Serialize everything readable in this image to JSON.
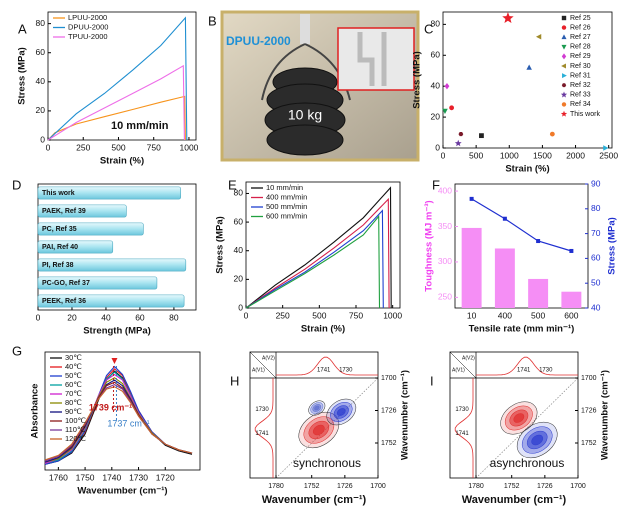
{
  "photo": {
    "panel": "B",
    "label": "DPUU-2000",
    "weight": "10 kg"
  },
  "chart_data": [
    {
      "panel": "A",
      "type": "line",
      "xlabel": "Strain (%)",
      "ylabel": "Stress (MPa)",
      "annotation": "10 mm/min",
      "xlim": [
        0,
        1050
      ],
      "xticks": [
        0,
        250,
        500,
        750,
        1000
      ],
      "ylim": [
        0,
        88
      ],
      "yticks": [
        0,
        20,
        40,
        60,
        80
      ],
      "legend": "upper left",
      "series": [
        {
          "name": "LPUU-2000",
          "color": "#f7941d",
          "x": [
            0,
            50,
            200,
            400,
            600,
            800,
            970,
            975
          ],
          "values": [
            0,
            5,
            11,
            16,
            21,
            26,
            30,
            0
          ]
        },
        {
          "name": "DPUU-2000",
          "color": "#1f8fd1",
          "x": [
            0,
            200,
            400,
            600,
            800,
            975,
            985
          ],
          "values": [
            0,
            18,
            32,
            48,
            65,
            84,
            0
          ]
        },
        {
          "name": "TPUU-2000",
          "color": "#ee6ee8",
          "x": [
            0,
            200,
            400,
            600,
            800,
            960,
            968
          ],
          "values": [
            0,
            12,
            22,
            32,
            42,
            51,
            0
          ]
        }
      ]
    },
    {
      "panel": "C",
      "type": "scatter",
      "xlabel": "Strain (%)",
      "ylabel": "Stress (MPa)",
      "xlim": [
        0,
        2550
      ],
      "xticks": [
        0,
        500,
        1000,
        1500,
        2000,
        2500
      ],
      "ylim": [
        0,
        88
      ],
      "yticks": [
        0,
        20,
        40,
        60,
        80
      ],
      "legend": "upper right",
      "series": [
        {
          "name": "Ref 25",
          "color": "#222222",
          "marker": "square",
          "x": [
            580
          ],
          "values": [
            8
          ]
        },
        {
          "name": "Ref 26",
          "color": "#e8202a",
          "marker": "circle",
          "x": [
            130
          ],
          "values": [
            26
          ]
        },
        {
          "name": "Ref 27",
          "color": "#2a5db0",
          "marker": "triangle-up",
          "x": [
            1300
          ],
          "values": [
            52
          ]
        },
        {
          "name": "Ref 28",
          "color": "#1a9a50",
          "marker": "triangle-down",
          "x": [
            30
          ],
          "values": [
            24
          ]
        },
        {
          "name": "Ref 29",
          "color": "#d23bd2",
          "marker": "diamond",
          "x": [
            60
          ],
          "values": [
            40
          ]
        },
        {
          "name": "Ref 30",
          "color": "#a08a2a",
          "marker": "triangle-left",
          "x": [
            1450
          ],
          "values": [
            72
          ]
        },
        {
          "name": "Ref 31",
          "color": "#2ab0d8",
          "marker": "triangle-right",
          "x": [
            2450
          ],
          "values": [
            0
          ]
        },
        {
          "name": "Ref 32",
          "color": "#7a1a2a",
          "marker": "hexagon",
          "x": [
            270
          ],
          "values": [
            9
          ]
        },
        {
          "name": "Ref 33",
          "color": "#6a3aa0",
          "marker": "star",
          "x": [
            230
          ],
          "values": [
            3
          ]
        },
        {
          "name": "Ref 34",
          "color": "#f07a2a",
          "marker": "circle",
          "x": [
            1650
          ],
          "values": [
            9
          ]
        },
        {
          "name": "This work",
          "color": "#e8202a",
          "marker": "star",
          "x": [
            980
          ],
          "values": [
            84
          ]
        }
      ]
    },
    {
      "panel": "D",
      "type": "barh",
      "xlabel": "Strength (MPa)",
      "color": "#a8e4f0",
      "categories": [
        "This work",
        "PAEK, Ref 39",
        "PC, Ref 35",
        "PAI, Ref 40",
        "PI, Ref 38",
        "PC-GO, Ref 37",
        "PEEK, Ref 36"
      ],
      "values": [
        84,
        52,
        62,
        44,
        87,
        70,
        86
      ],
      "xlim": [
        0,
        93
      ],
      "xticks": [
        0,
        20,
        40,
        60,
        80
      ]
    },
    {
      "panel": "E",
      "type": "line",
      "xlabel": "Strain (%)",
      "ylabel": "Stress (MPa)",
      "xlim": [
        0,
        1050
      ],
      "xticks": [
        0,
        250,
        500,
        750,
        1000
      ],
      "ylim": [
        0,
        88
      ],
      "yticks": [
        0,
        20,
        40,
        60,
        80
      ],
      "legend": "upper left",
      "series": [
        {
          "name": "10 mm/min",
          "color": "#111111",
          "x": [
            0,
            200,
            400,
            600,
            800,
            985,
            990
          ],
          "values": [
            0,
            16,
            30,
            46,
            63,
            84,
            0
          ]
        },
        {
          "name": "400 mm/min",
          "color": "#d6204a",
          "x": [
            0,
            200,
            400,
            600,
            800,
            970,
            976
          ],
          "values": [
            0,
            14,
            27,
            42,
            58,
            76,
            0
          ]
        },
        {
          "name": "500 mm/min",
          "color": "#2040d0",
          "x": [
            0,
            200,
            400,
            600,
            800,
            930,
            936
          ],
          "values": [
            0,
            13,
            25,
            39,
            54,
            68,
            0
          ]
        },
        {
          "name": "600 mm/min",
          "color": "#20a040",
          "x": [
            0,
            200,
            400,
            600,
            800,
            905,
            910
          ],
          "values": [
            0,
            12,
            24,
            37,
            51,
            64,
            0
          ]
        }
      ]
    },
    {
      "panel": "F",
      "type": "bar_line",
      "xlabel": "Tensile rate (mm min⁻¹)",
      "ylabel": "Toughness (MJ m⁻³)",
      "y2label": "Stress (MPa)",
      "categories": [
        "10",
        "400",
        "500",
        "600"
      ],
      "ylim": [
        235,
        410
      ],
      "yticks": [
        250,
        300,
        350,
        400
      ],
      "y2lim": [
        40,
        90
      ],
      "y2ticks": [
        40,
        50,
        60,
        70,
        80,
        90
      ],
      "series": [
        {
          "color": "#f58ef5",
          "values": [
            348,
            319,
            276,
            258
          ]
        },
        {
          "color": "#1f2fd0",
          "axis": "y2",
          "values": [
            84,
            76,
            67,
            63
          ]
        }
      ]
    },
    {
      "panel": "G",
      "type": "line",
      "xlabel": "Wavenumber (cm⁻¹)",
      "ylabel": "Absorbance",
      "legend": "upper left",
      "annotations": [
        "1739 cm⁻¹",
        "1737 cm⁻¹"
      ],
      "xlim": [
        1765,
        1707
      ],
      "xticks": [
        1760,
        1750,
        1740,
        1730,
        1720
      ],
      "ylim": [
        0,
        1.05
      ],
      "x": [
        1765,
        1760,
        1755,
        1750,
        1745,
        1742,
        1739,
        1736,
        1733,
        1730,
        1725,
        1720,
        1715,
        1710
      ],
      "series": [
        {
          "name": "30℃",
          "color": "#111111",
          "values": [
            0.05,
            0.08,
            0.15,
            0.32,
            0.62,
            0.8,
            0.88,
            0.82,
            0.68,
            0.52,
            0.33,
            0.22,
            0.17,
            0.14
          ]
        },
        {
          "name": "40℃",
          "color": "#e41a1c",
          "values": [
            0.06,
            0.09,
            0.16,
            0.34,
            0.64,
            0.82,
            0.9,
            0.84,
            0.69,
            0.53,
            0.34,
            0.23,
            0.18,
            0.15
          ]
        },
        {
          "name": "50℃",
          "color": "#1f3fd0",
          "values": [
            0.05,
            0.08,
            0.16,
            0.35,
            0.66,
            0.84,
            0.92,
            0.85,
            0.7,
            0.53,
            0.34,
            0.23,
            0.18,
            0.15
          ]
        },
        {
          "name": "60℃",
          "color": "#00a0a0",
          "values": [
            0.06,
            0.09,
            0.17,
            0.36,
            0.65,
            0.81,
            0.87,
            0.81,
            0.67,
            0.51,
            0.33,
            0.23,
            0.18,
            0.15
          ]
        },
        {
          "name": "70℃",
          "color": "#d020d0",
          "values": [
            0.06,
            0.1,
            0.18,
            0.37,
            0.66,
            0.8,
            0.85,
            0.8,
            0.66,
            0.51,
            0.33,
            0.23,
            0.18,
            0.15
          ]
        },
        {
          "name": "80℃",
          "color": "#8a8a00",
          "values": [
            0.07,
            0.1,
            0.19,
            0.38,
            0.65,
            0.78,
            0.82,
            0.77,
            0.64,
            0.5,
            0.33,
            0.23,
            0.18,
            0.15
          ]
        },
        {
          "name": "90℃",
          "color": "#101080",
          "values": [
            0.07,
            0.11,
            0.2,
            0.39,
            0.64,
            0.76,
            0.8,
            0.75,
            0.63,
            0.49,
            0.32,
            0.23,
            0.18,
            0.15
          ]
        },
        {
          "name": "100℃",
          "color": "#8b1a1a",
          "values": [
            0.08,
            0.12,
            0.21,
            0.4,
            0.64,
            0.75,
            0.78,
            0.73,
            0.62,
            0.49,
            0.32,
            0.23,
            0.18,
            0.15
          ]
        },
        {
          "name": "110℃",
          "color": "#7a3a9a",
          "values": [
            0.08,
            0.12,
            0.22,
            0.41,
            0.63,
            0.73,
            0.76,
            0.72,
            0.61,
            0.48,
            0.32,
            0.23,
            0.18,
            0.15
          ]
        },
        {
          "name": "120℃",
          "color": "#c86428",
          "values": [
            0.09,
            0.13,
            0.23,
            0.42,
            0.63,
            0.72,
            0.74,
            0.7,
            0.6,
            0.48,
            0.32,
            0.23,
            0.18,
            0.15
          ]
        }
      ]
    },
    {
      "panel": "H",
      "type": "contour",
      "label": "synchronous",
      "xlabel": "Wavenumber (cm⁻¹)",
      "ylabel": "Wavenumber (cm⁻¹)",
      "trace_labels": [
        "A(V1)",
        "A(V2)"
      ],
      "peaks": [
        1741,
        1730
      ],
      "xlim": [
        1780,
        1700
      ],
      "xticks": [
        1780,
        1752,
        1726,
        1700
      ],
      "ylim": [
        1780,
        1700
      ],
      "yticks": [
        1700,
        1726,
        1752
      ]
    },
    {
      "panel": "I",
      "type": "contour",
      "label": "asynchronous",
      "xlabel": "Wavenumber (cm⁻¹)",
      "ylabel": "Wavenumber (cm⁻¹)",
      "trace_labels": [
        "A(V1)",
        "A(V2)"
      ],
      "peaks": [
        1741,
        1730
      ],
      "xlim": [
        1780,
        1700
      ],
      "xticks": [
        1780,
        1752,
        1726,
        1700
      ],
      "ylim": [
        1780,
        1700
      ],
      "yticks": [
        1700,
        1726,
        1752
      ]
    }
  ]
}
